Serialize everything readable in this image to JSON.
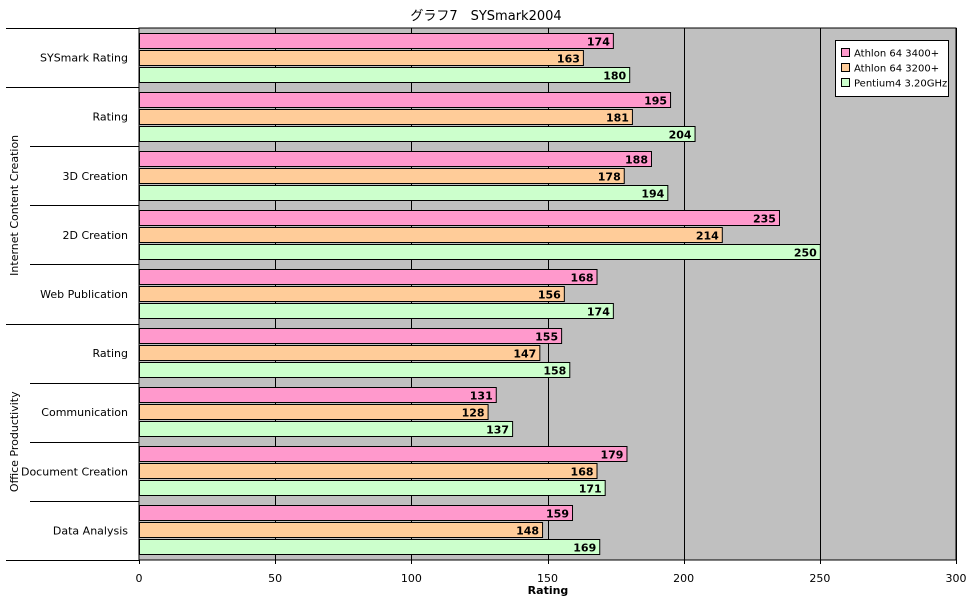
{
  "chart_data": {
    "type": "bar",
    "orientation": "horizontal",
    "title": "グラフ7　SYSmark2004",
    "xlabel": "Rating",
    "ylabel": "",
    "xlim": [
      0,
      300
    ],
    "xticks": [
      0,
      50,
      100,
      150,
      200,
      250,
      300
    ],
    "grid": true,
    "legend_position": "top-right",
    "categories": [
      "SYSmark Rating",
      "Rating",
      "3D Creation",
      "2D Creation",
      "Web Publication",
      "Rating",
      "Communication",
      "Document Creation",
      "Data Analysis"
    ],
    "groups": [
      {
        "label": "Internet Content Creation",
        "start": 1,
        "end": 4
      },
      {
        "label": "Office Productivity",
        "start": 5,
        "end": 8
      }
    ],
    "series": [
      {
        "name": "Athlon 64 3400+",
        "color": "#ff99cc",
        "values": [
          174,
          195,
          188,
          235,
          168,
          155,
          131,
          179,
          159
        ]
      },
      {
        "name": "Athlon 64 3200+",
        "color": "#ffcc99",
        "values": [
          163,
          181,
          178,
          214,
          156,
          147,
          128,
          168,
          148
        ]
      },
      {
        "name": "Pentium4 3.20GHz",
        "color": "#ccffcc",
        "values": [
          180,
          204,
          194,
          250,
          174,
          158,
          137,
          171,
          169
        ]
      }
    ],
    "plot_background": "#c0c0c0"
  }
}
